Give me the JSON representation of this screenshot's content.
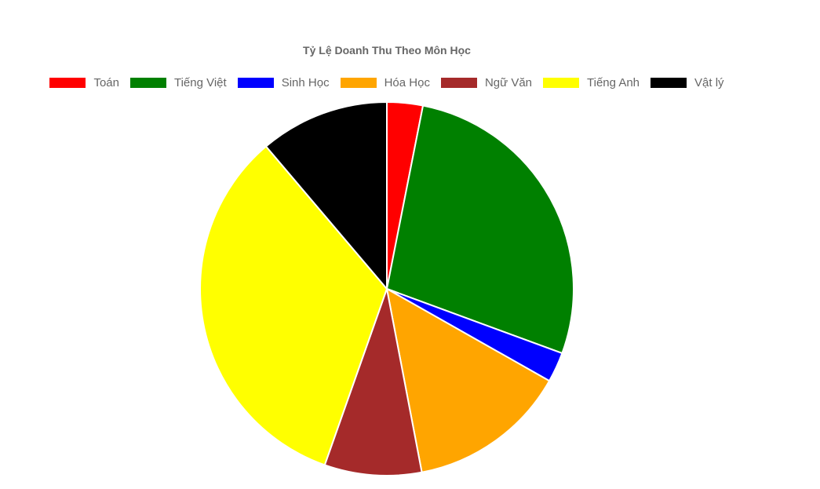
{
  "chart_data": {
    "type": "pie",
    "title": "Tỷ Lệ Doanh Thu Theo Môn Học",
    "legend_position": "top",
    "categories": [
      "Toán",
      "Tiếng Việt",
      "Sinh Học",
      "Hóa Học",
      "Ngữ Văn",
      "Tiếng Anh",
      "Vật lý"
    ],
    "values": [
      3.1,
      27.5,
      2.6,
      13.8,
      8.4,
      33.4,
      11.2
    ],
    "colors": [
      "#ff0000",
      "#008000",
      "#0000ff",
      "#ffa500",
      "#a52a2a",
      "#ffff00",
      "#000000"
    ]
  }
}
